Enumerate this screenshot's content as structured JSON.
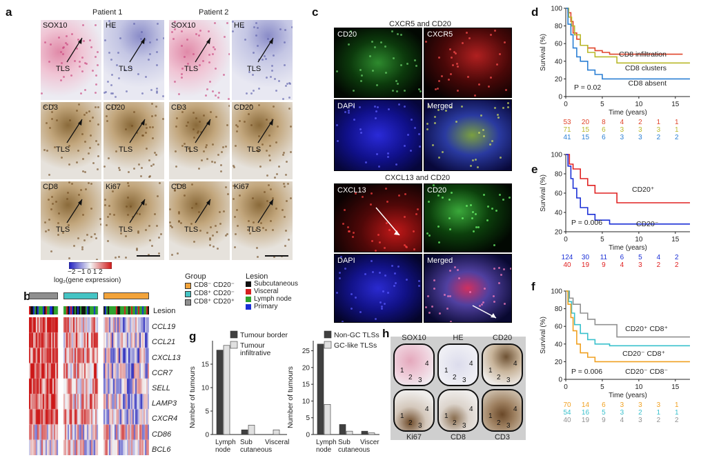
{
  "panels": {
    "a": "a",
    "b": "b",
    "c": "c",
    "d": "d",
    "e": "e",
    "f": "f",
    "g": "g",
    "h": "h"
  },
  "panel_a": {
    "patient1": "Patient 1",
    "patient2": "Patient 2",
    "rows": [
      [
        "SOX10",
        "HE",
        "SOX10",
        "HE"
      ],
      [
        "CD3",
        "CD20",
        "CD3",
        "CD20"
      ],
      [
        "CD8",
        "Ki67",
        "CD8",
        "Ki67"
      ]
    ],
    "tls": "TLS"
  },
  "panel_b": {
    "colorbar_ticks": "−2 −1 0 1 2",
    "colorbar_label": "log₂(gene expression)",
    "lesion_label": "Lesion",
    "genes": [
      "CCL19",
      "CCL21",
      "CXCL13",
      "CCR7",
      "SELL",
      "LAMP3",
      "CXCR4",
      "CD86",
      "BCL6"
    ]
  },
  "legend_group": {
    "title": "Group",
    "items": [
      {
        "label": "CD8⁻ CD20⁻",
        "color": "#f2a33a"
      },
      {
        "label": "CD8⁺ CD20⁻",
        "color": "#45c4c4"
      },
      {
        "label": "CD8⁺ CD20⁺",
        "color": "#8f8f8f"
      }
    ]
  },
  "legend_lesion": {
    "title": "Lesion",
    "items": [
      {
        "label": "Subcutaneous",
        "color": "#111111"
      },
      {
        "label": "Visceral",
        "color": "#d62020"
      },
      {
        "label": "Lymph node",
        "color": "#2fa32f"
      },
      {
        "label": "Primary",
        "color": "#1a2fd6"
      }
    ]
  },
  "panel_c": {
    "title_top": "CXCR5 and CD20",
    "title_bottom": "CXCL13 and CD20",
    "top_tiles": [
      "CD20",
      "CXCR5",
      "DAPI",
      "Merged"
    ],
    "bottom_tiles": [
      "CXCL13",
      "CD20",
      "DAPI",
      "Merged"
    ]
  },
  "panel_g": {
    "ylabel": "Number of tumours",
    "chart_data": [
      {
        "type": "bar",
        "categories": [
          "Lymph node",
          "Sub cutaneous",
          "Visceral"
        ],
        "category_lines": [
          [
            "Lymph",
            "node"
          ],
          [
            "Sub",
            "cutaneous"
          ],
          [
            "Visceral",
            ""
          ]
        ],
        "series": [
          {
            "name": "Tumour border",
            "color": "#404040",
            "values": [
              18,
              1,
              0
            ]
          },
          {
            "name": "Tumour infiltrative",
            "color": "#e0e0e0",
            "values": [
              19,
              2,
              1
            ]
          }
        ],
        "ylim": [
          0,
          20
        ],
        "yticks": [
          0,
          5,
          10,
          15
        ]
      },
      {
        "type": "bar",
        "categories": [
          "Lymph node",
          "Sub cutaneous",
          "Visceral"
        ],
        "category_lines": [
          [
            "Lymph",
            "node"
          ],
          [
            "Sub",
            "cutaneous"
          ],
          [
            "Visceral",
            ""
          ]
        ],
        "series": [
          {
            "name": "Non-GC TLSs",
            "color": "#404040",
            "values": [
              27,
              3,
              1
            ]
          },
          {
            "name": "GC-like TLSs",
            "color": "#e0e0e0",
            "values": [
              9,
              1,
              0.5
            ]
          }
        ],
        "ylim": [
          0,
          28
        ],
        "yticks": [
          0,
          5,
          10,
          15,
          20,
          25
        ]
      }
    ],
    "legend_left": [
      [
        "Tumour border",
        ""
      ],
      [
        "Tumour",
        "infiltrative"
      ]
    ],
    "legend_right": [
      [
        "Non-GC TLSs",
        ""
      ],
      [
        "GC-like TLSs",
        ""
      ]
    ]
  },
  "panel_h": {
    "top": [
      "SOX10",
      "HE",
      "CD20"
    ],
    "bottom": [
      "Ki67",
      "CD8",
      "CD3"
    ],
    "numbers": [
      "1",
      "2",
      "3",
      "4"
    ]
  },
  "chart_data": [
    {
      "type": "line",
      "id": "d",
      "ylabel": "Survival (%)",
      "xlabel": "Time (years)",
      "xlim": [
        0,
        17
      ],
      "ylim": [
        0,
        100
      ],
      "xticks": [
        0,
        5,
        10,
        15
      ],
      "yticks": [
        0,
        20,
        40,
        60,
        80,
        100
      ],
      "pvalue": "P = 0.02",
      "series": [
        {
          "name": "CD8 infiltration",
          "color": "#e0442a",
          "points": [
            [
              0,
              100
            ],
            [
              0.3,
              95
            ],
            [
              0.7,
              85
            ],
            [
              1,
              72
            ],
            [
              1.5,
              65
            ],
            [
              2,
              58
            ],
            [
              3,
              55
            ],
            [
              4,
              52
            ],
            [
              5,
              50
            ],
            [
              6,
              48
            ],
            [
              16,
              48
            ]
          ]
        },
        {
          "name": "CD8 clusters",
          "color": "#b8b82a",
          "points": [
            [
              0,
              100
            ],
            [
              0.4,
              90
            ],
            [
              0.8,
              80
            ],
            [
              1.2,
              70
            ],
            [
              2,
              58
            ],
            [
              3,
              50
            ],
            [
              4,
              45
            ],
            [
              5,
              45
            ],
            [
              7,
              45
            ],
            [
              7,
              38
            ],
            [
              17,
              38
            ]
          ]
        },
        {
          "name": "CD8 absent",
          "color": "#2a7fd4",
          "points": [
            [
              0,
              100
            ],
            [
              0.3,
              82
            ],
            [
              0.7,
              70
            ],
            [
              1,
              55
            ],
            [
              1.5,
              45
            ],
            [
              2,
              40
            ],
            [
              3,
              30
            ],
            [
              4,
              25
            ],
            [
              5,
              20
            ],
            [
              6,
              20
            ],
            [
              17,
              20
            ]
          ]
        }
      ],
      "risk_table": [
        {
          "color": "#e0442a",
          "values": [
            "53",
            "20",
            "8",
            "4",
            "2",
            "1",
            "1"
          ]
        },
        {
          "color": "#b8b82a",
          "values": [
            "71",
            "15",
            "6",
            "3",
            "3",
            "3",
            "1"
          ]
        },
        {
          "color": "#2a7fd4",
          "values": [
            "41",
            "15",
            "6",
            "3",
            "3",
            "2",
            "2"
          ]
        }
      ]
    },
    {
      "type": "line",
      "id": "e",
      "ylabel": "Survival (%)",
      "xlabel": "Time (years)",
      "xlim": [
        0,
        17
      ],
      "ylim": [
        20,
        100
      ],
      "xticks": [
        0,
        5,
        10,
        15
      ],
      "yticks": [
        20,
        40,
        60,
        80,
        100
      ],
      "pvalue": "P = 0.006",
      "series": [
        {
          "name": "CD20⁺",
          "color": "#e02020",
          "points": [
            [
              0,
              100
            ],
            [
              0.5,
              90
            ],
            [
              1,
              85
            ],
            [
              2,
              75
            ],
            [
              3,
              68
            ],
            [
              4,
              60
            ],
            [
              7,
              60
            ],
            [
              7,
              50
            ],
            [
              17,
              50
            ]
          ]
        },
        {
          "name": "CD20⁻",
          "color": "#1a2fd6",
          "points": [
            [
              0,
              100
            ],
            [
              0.3,
              88
            ],
            [
              0.7,
              75
            ],
            [
              1,
              65
            ],
            [
              1.5,
              55
            ],
            [
              2,
              45
            ],
            [
              3,
              38
            ],
            [
              4,
              32
            ],
            [
              6,
              28
            ],
            [
              17,
              28
            ]
          ]
        }
      ],
      "risk_table": [
        {
          "color": "#1a2fd6",
          "values": [
            "124",
            "30",
            "11",
            "6",
            "5",
            "4",
            "2"
          ]
        },
        {
          "color": "#e02020",
          "values": [
            "40",
            "19",
            "9",
            "4",
            "3",
            "2",
            "2"
          ]
        }
      ]
    },
    {
      "type": "line",
      "id": "f",
      "ylabel": "Survival (%)",
      "xlabel": "Time (years)",
      "xlim": [
        0,
        17
      ],
      "ylim": [
        0,
        100
      ],
      "xticks": [
        0,
        5,
        10,
        15
      ],
      "yticks": [
        0,
        20,
        40,
        60,
        80,
        100
      ],
      "pvalue": "P = 0.006",
      "series": [
        {
          "name": "CD20⁺ CD8⁺",
          "color": "#909090",
          "points": [
            [
              0,
              100
            ],
            [
              0.5,
              92
            ],
            [
              1,
              85
            ],
            [
              2,
              75
            ],
            [
              3,
              68
            ],
            [
              4,
              62
            ],
            [
              7,
              62
            ],
            [
              7,
              48
            ],
            [
              17,
              48
            ]
          ]
        },
        {
          "name": "CD20⁻ CD8⁺",
          "color": "#38c0cc",
          "points": [
            [
              0,
              100
            ],
            [
              0.4,
              88
            ],
            [
              0.8,
              75
            ],
            [
              1.2,
              62
            ],
            [
              2,
              52
            ],
            [
              3,
              45
            ],
            [
              4,
              40
            ],
            [
              6,
              38
            ],
            [
              17,
              38
            ]
          ]
        },
        {
          "name": "CD20⁻ CD8⁻",
          "color": "#f0a020",
          "points": [
            [
              0,
              100
            ],
            [
              0.3,
              85
            ],
            [
              0.7,
              70
            ],
            [
              1,
              55
            ],
            [
              1.5,
              40
            ],
            [
              2,
              30
            ],
            [
              3,
              25
            ],
            [
              4,
              20
            ],
            [
              17,
              20
            ]
          ]
        }
      ],
      "risk_table": [
        {
          "color": "#f0a020",
          "values": [
            "70",
            "14",
            "6",
            "3",
            "3",
            "3",
            "1"
          ]
        },
        {
          "color": "#38c0cc",
          "values": [
            "54",
            "16",
            "5",
            "3",
            "2",
            "1",
            "1"
          ]
        },
        {
          "color": "#909090",
          "values": [
            "40",
            "19",
            "9",
            "4",
            "3",
            "2",
            "2"
          ]
        }
      ]
    }
  ]
}
